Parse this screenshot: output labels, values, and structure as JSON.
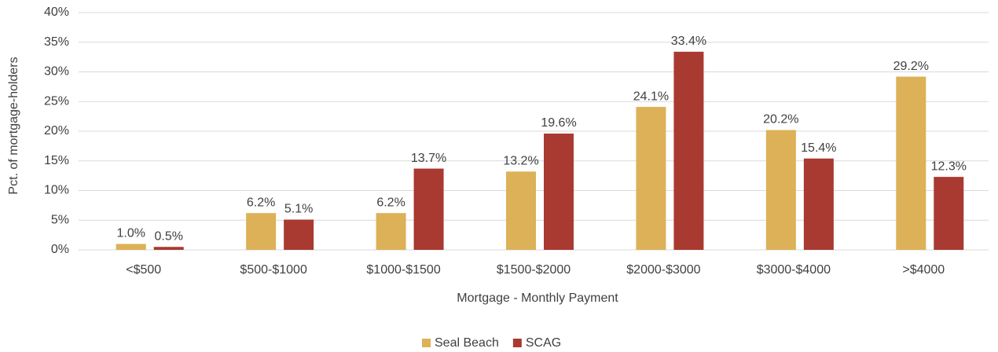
{
  "chart_data": {
    "type": "bar",
    "x_label": "Mortgage - Monthly Payment",
    "y_label": "Pct. of mortgage-holders",
    "categories": [
      "<$500",
      "$500-$1000",
      "$1000-$1500",
      "$1500-$2000",
      "$2000-$3000",
      "$3000-$4000",
      ">$4000"
    ],
    "series": [
      {
        "name": "Seal Beach",
        "color": "#ddb157",
        "values": [
          1.0,
          6.2,
          6.2,
          13.2,
          24.1,
          20.2,
          29.2
        ],
        "value_labels": [
          "1.0%",
          "6.2%",
          "6.2%",
          "13.2%",
          "24.1%",
          "20.2%",
          "29.2%"
        ]
      },
      {
        "name": "SCAG",
        "color": "#a93a31",
        "values": [
          0.5,
          5.1,
          13.7,
          19.6,
          33.4,
          15.4,
          12.3
        ],
        "value_labels": [
          "0.5%",
          "5.1%",
          "13.7%",
          "19.6%",
          "33.4%",
          "15.4%",
          "12.3%"
        ]
      }
    ],
    "ylim": [
      0,
      40
    ],
    "yticks": [
      {
        "value": 0,
        "label": "0%"
      },
      {
        "value": 5,
        "label": "5%"
      },
      {
        "value": 10,
        "label": "10%"
      },
      {
        "value": 15,
        "label": "15%"
      },
      {
        "value": 20,
        "label": "20%"
      },
      {
        "value": 25,
        "label": "25%"
      },
      {
        "value": 30,
        "label": "30%"
      },
      {
        "value": 35,
        "label": "35%"
      },
      {
        "value": 40,
        "label": "40%"
      }
    ],
    "grid": true,
    "legend": "bottom"
  }
}
